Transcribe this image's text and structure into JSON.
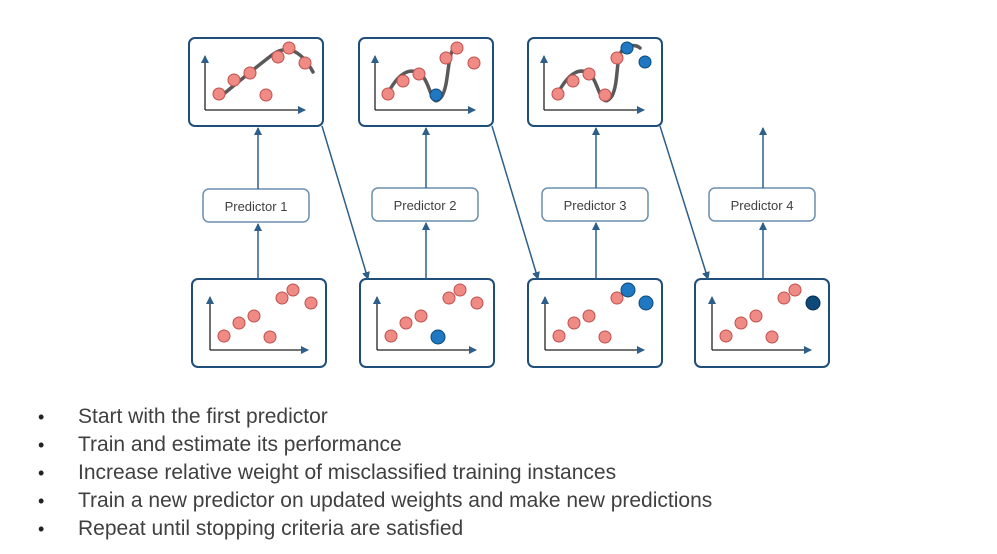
{
  "predictors": [
    {
      "label": "Predictor 1"
    },
    {
      "label": "Predictor 2"
    },
    {
      "label": "Predictor 3"
    },
    {
      "label": "Predictor 4"
    }
  ],
  "bullets": [
    "Start with the first predictor",
    "Train and estimate its performance",
    "Increase relative weight of misclassified training instances",
    "Train a new predictor on updated weights and make new predictions",
    "Repeat until stopping criteria are satisfied"
  ],
  "bullet_glyph": "•",
  "colors": {
    "frame": "#1f4e79",
    "arrow": "#2d5f8a",
    "point": "#f08a84",
    "point_stroke": "#c0504d",
    "misclassified_1": "#1f78c1",
    "misclassified_2": "#0d4a7a",
    "curve": "#595959",
    "predictor_border": "#6a8fb0",
    "text": "#404040"
  }
}
